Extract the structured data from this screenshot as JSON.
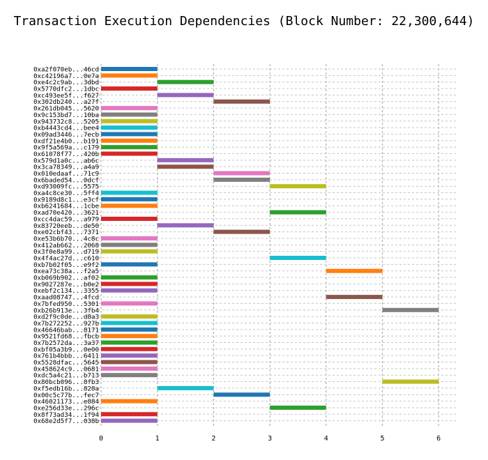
{
  "chart_data": {
    "type": "bar",
    "orientation": "horizontal-gantt",
    "title": "Transaction Execution Dependencies (Block Number: 22,300,644)",
    "xlabel": "",
    "ylabel": "",
    "xlim": [
      0,
      6
    ],
    "x_ticks": [
      "0",
      "1",
      "2",
      "3",
      "4",
      "5",
      "6"
    ],
    "grid": true,
    "tasks": [
      {
        "label": "0xa2f070eb...46cd",
        "start": 0,
        "end": 1,
        "color": "#1f77b4"
      },
      {
        "label": "0xc42196a7...0e7a",
        "start": 0,
        "end": 1,
        "color": "#ff7f0e"
      },
      {
        "label": "0xe4c2c9ab...3dbd",
        "start": 1,
        "end": 2,
        "color": "#2ca02c"
      },
      {
        "label": "0x5770dfc2...1dbc",
        "start": 0,
        "end": 1,
        "color": "#d62728"
      },
      {
        "label": "0xc493ee5f...f627",
        "start": 1,
        "end": 2,
        "color": "#9467bd"
      },
      {
        "label": "0x302db240...a27f",
        "start": 2,
        "end": 3,
        "color": "#8c564b"
      },
      {
        "label": "0x261db045...5620",
        "start": 0,
        "end": 1,
        "color": "#e377c2"
      },
      {
        "label": "0x9c153bd7...10ba",
        "start": 0,
        "end": 1,
        "color": "#7f7f7f"
      },
      {
        "label": "0x943732c8...5205",
        "start": 0,
        "end": 1,
        "color": "#bcbd22"
      },
      {
        "label": "0xb4443cd4...bee4",
        "start": 0,
        "end": 1,
        "color": "#17becf"
      },
      {
        "label": "0x09ad3446...7ecb",
        "start": 0,
        "end": 1,
        "color": "#1f77b4"
      },
      {
        "label": "0xdf21e4b0...b191",
        "start": 0,
        "end": 1,
        "color": "#ff7f0e"
      },
      {
        "label": "0x9f5a569a...c179",
        "start": 0,
        "end": 1,
        "color": "#2ca02c"
      },
      {
        "label": "0x61078f77...420b",
        "start": 0,
        "end": 1,
        "color": "#d62728"
      },
      {
        "label": "0x579d1a0c...ab6c",
        "start": 1,
        "end": 2,
        "color": "#9467bd"
      },
      {
        "label": "0x3ca78349...a4a9",
        "start": 1,
        "end": 2,
        "color": "#8c564b"
      },
      {
        "label": "0x010edaaf...71c9",
        "start": 2,
        "end": 3,
        "color": "#e377c2"
      },
      {
        "label": "0x6baded54...0dcf",
        "start": 2,
        "end": 3,
        "color": "#7f7f7f"
      },
      {
        "label": "0xd93009fc...5575",
        "start": 3,
        "end": 4,
        "color": "#bcbd22"
      },
      {
        "label": "0xa4c8ce30...5ff4",
        "start": 0,
        "end": 1,
        "color": "#17becf"
      },
      {
        "label": "0x9189d8c1...e3cf",
        "start": 0,
        "end": 1,
        "color": "#1f77b4"
      },
      {
        "label": "0xb6241684...1cbe",
        "start": 0,
        "end": 1,
        "color": "#ff7f0e"
      },
      {
        "label": "0xad70e420...3621",
        "start": 3,
        "end": 4,
        "color": "#2ca02c"
      },
      {
        "label": "0xcc4dac59...a979",
        "start": 0,
        "end": 1,
        "color": "#d62728"
      },
      {
        "label": "0x83720eeb...de50",
        "start": 1,
        "end": 2,
        "color": "#9467bd"
      },
      {
        "label": "0xe02cbf43...7371",
        "start": 2,
        "end": 3,
        "color": "#8c564b"
      },
      {
        "label": "0xe53b6b70...4c8c",
        "start": 0,
        "end": 1,
        "color": "#e377c2"
      },
      {
        "label": "0x412ab662...2068",
        "start": 0,
        "end": 1,
        "color": "#7f7f7f"
      },
      {
        "label": "0x3f0e8a99...d719",
        "start": 0,
        "end": 1,
        "color": "#bcbd22"
      },
      {
        "label": "0x4f4ac27d...c610",
        "start": 3,
        "end": 4,
        "color": "#17becf"
      },
      {
        "label": "0xb7b02f05...e9f2",
        "start": 0,
        "end": 1,
        "color": "#1f77b4"
      },
      {
        "label": "0xea73c38a...f2a5",
        "start": 4,
        "end": 5,
        "color": "#ff7f0e"
      },
      {
        "label": "0xb069b902...af02",
        "start": 0,
        "end": 1,
        "color": "#2ca02c"
      },
      {
        "label": "0x9027287e...b0e2",
        "start": 0,
        "end": 1,
        "color": "#d62728"
      },
      {
        "label": "0xebf2c134...3355",
        "start": 0,
        "end": 1,
        "color": "#9467bd"
      },
      {
        "label": "0xaad08747...4fcd",
        "start": 4,
        "end": 5,
        "color": "#8c564b"
      },
      {
        "label": "0x7bfed950...5301",
        "start": 0,
        "end": 1,
        "color": "#e377c2"
      },
      {
        "label": "0xb26b913e...3fb4",
        "start": 5,
        "end": 6,
        "color": "#7f7f7f"
      },
      {
        "label": "0xd2f9c0de...d8a3",
        "start": 0,
        "end": 1,
        "color": "#bcbd22"
      },
      {
        "label": "0x7b272252...927b",
        "start": 0,
        "end": 1,
        "color": "#17becf"
      },
      {
        "label": "0x46646bab...8171",
        "start": 0,
        "end": 1,
        "color": "#1f77b4"
      },
      {
        "label": "0x9521fd68...fbcb",
        "start": 0,
        "end": 1,
        "color": "#ff7f0e"
      },
      {
        "label": "0x7b2572da...3a37",
        "start": 0,
        "end": 1,
        "color": "#2ca02c"
      },
      {
        "label": "0xbf05a3b9...0e00",
        "start": 0,
        "end": 1,
        "color": "#d62728"
      },
      {
        "label": "0x761b4bbb...6411",
        "start": 0,
        "end": 1,
        "color": "#9467bd"
      },
      {
        "label": "0x5528dfac...5645",
        "start": 0,
        "end": 1,
        "color": "#8c564b"
      },
      {
        "label": "0x458624c9...0681",
        "start": 0,
        "end": 1,
        "color": "#e377c2"
      },
      {
        "label": "0xdc5a4c21...b713",
        "start": 0,
        "end": 1,
        "color": "#7f7f7f"
      },
      {
        "label": "0x80bcb096...8fb3",
        "start": 5,
        "end": 6,
        "color": "#bcbd22"
      },
      {
        "label": "0xf5edb16b...828a",
        "start": 1,
        "end": 2,
        "color": "#17becf"
      },
      {
        "label": "0x00c5c77b...fec7",
        "start": 2,
        "end": 3,
        "color": "#1f77b4"
      },
      {
        "label": "0x46021173...e884",
        "start": 0,
        "end": 1,
        "color": "#ff7f0e"
      },
      {
        "label": "0xe256d33e...296c",
        "start": 3,
        "end": 4,
        "color": "#2ca02c"
      },
      {
        "label": "0x8f73ad34...1f94",
        "start": 0,
        "end": 1,
        "color": "#d62728"
      },
      {
        "label": "0x68e2d5f7...038b",
        "start": 0,
        "end": 1,
        "color": "#9467bd"
      }
    ]
  }
}
